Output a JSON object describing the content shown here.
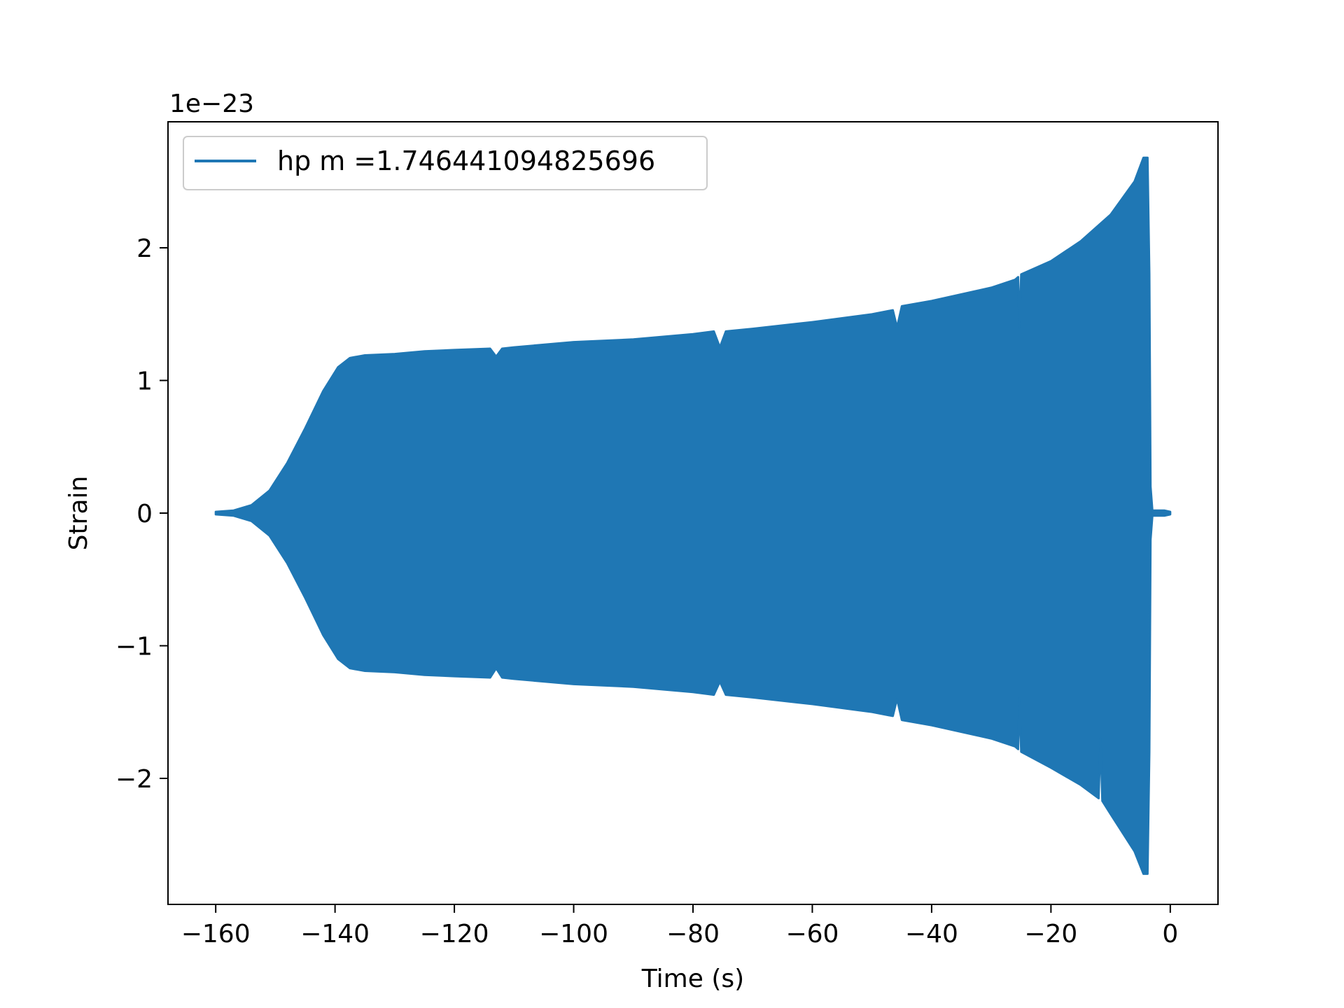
{
  "chart_data": {
    "type": "line",
    "title": "",
    "xlabel": "Time (s)",
    "ylabel": "Strain",
    "y_offset_label": "1e−23",
    "xlim": [
      -168,
      8
    ],
    "ylim": [
      -2.95,
      2.95
    ],
    "x_ticks": [
      {
        "value": -160,
        "label": "−160"
      },
      {
        "value": -140,
        "label": "−140"
      },
      {
        "value": -120,
        "label": "−120"
      },
      {
        "value": -100,
        "label": "−100"
      },
      {
        "value": -80,
        "label": "−80"
      },
      {
        "value": -60,
        "label": "−60"
      },
      {
        "value": -40,
        "label": "−40"
      },
      {
        "value": -20,
        "label": "−20"
      },
      {
        "value": 0,
        "label": "0"
      }
    ],
    "y_ticks": [
      {
        "value": -2,
        "label": "−2"
      },
      {
        "value": -1,
        "label": "−1"
      },
      {
        "value": 0,
        "label": "0"
      },
      {
        "value": 1,
        "label": "1"
      },
      {
        "value": 2,
        "label": "2"
      }
    ],
    "grid": false,
    "legend": {
      "placement": "top-left",
      "entries": [
        "hp m =1.746441094825696"
      ]
    },
    "series": [
      {
        "name": "hp m =1.746441094825696",
        "color": "#1f77b4",
        "upper_envelope": [
          [
            -160,
            0.01
          ],
          [
            -157,
            0.02
          ],
          [
            -154,
            0.06
          ],
          [
            -151,
            0.17
          ],
          [
            -148,
            0.38
          ],
          [
            -145,
            0.64
          ],
          [
            -142,
            0.92
          ],
          [
            -139.5,
            1.1
          ],
          [
            -137.5,
            1.17
          ],
          [
            -135,
            1.19
          ],
          [
            -130,
            1.2
          ],
          [
            -125,
            1.22
          ],
          [
            -120,
            1.23
          ],
          [
            -114,
            1.24
          ],
          [
            -113,
            1.18
          ],
          [
            -112,
            1.24
          ],
          [
            -110,
            1.25
          ],
          [
            -100,
            1.29
          ],
          [
            -90,
            1.31
          ],
          [
            -80,
            1.35
          ],
          [
            -76.5,
            1.37
          ],
          [
            -75.5,
            1.25
          ],
          [
            -74.5,
            1.37
          ],
          [
            -70,
            1.39
          ],
          [
            -60,
            1.44
          ],
          [
            -50,
            1.5
          ],
          [
            -46.5,
            1.53
          ],
          [
            -45.8,
            1.4
          ],
          [
            -45,
            1.56
          ],
          [
            -40,
            1.6
          ],
          [
            -30,
            1.7
          ],
          [
            -26,
            1.76
          ],
          [
            -25.5,
            1.78
          ],
          [
            -25.3,
            1.4
          ],
          [
            -25,
            1.8
          ],
          [
            -20,
            1.9
          ],
          [
            -15,
            2.05
          ],
          [
            -10,
            2.25
          ],
          [
            -6,
            2.5
          ],
          [
            -4.5,
            2.68
          ],
          [
            -3.8,
            2.68
          ],
          [
            -3.5,
            1.8
          ],
          [
            -3.3,
            0.2
          ],
          [
            -3,
            0.02
          ],
          [
            -1,
            0.02
          ],
          [
            0,
            0.01
          ]
        ],
        "lower_envelope": [
          [
            -160,
            -0.01
          ],
          [
            -157,
            -0.02
          ],
          [
            -154,
            -0.06
          ],
          [
            -151,
            -0.17
          ],
          [
            -148,
            -0.38
          ],
          [
            -145,
            -0.64
          ],
          [
            -142,
            -0.92
          ],
          [
            -139.5,
            -1.1
          ],
          [
            -137.5,
            -1.17
          ],
          [
            -135,
            -1.19
          ],
          [
            -130,
            -1.2
          ],
          [
            -125,
            -1.22
          ],
          [
            -120,
            -1.23
          ],
          [
            -114,
            -1.24
          ],
          [
            -113,
            -1.17
          ],
          [
            -112,
            -1.24
          ],
          [
            -110,
            -1.25
          ],
          [
            -100,
            -1.29
          ],
          [
            -90,
            -1.31
          ],
          [
            -80,
            -1.35
          ],
          [
            -76.5,
            -1.37
          ],
          [
            -75.5,
            -1.27
          ],
          [
            -74.5,
            -1.37
          ],
          [
            -70,
            -1.39
          ],
          [
            -60,
            -1.44
          ],
          [
            -50,
            -1.5
          ],
          [
            -46.5,
            -1.53
          ],
          [
            -45.8,
            -1.4
          ],
          [
            -45,
            -1.56
          ],
          [
            -40,
            -1.6
          ],
          [
            -30,
            -1.7
          ],
          [
            -26,
            -1.76
          ],
          [
            -25.5,
            -1.78
          ],
          [
            -25.3,
            -1.4
          ],
          [
            -25,
            -1.8
          ],
          [
            -20,
            -1.92
          ],
          [
            -15,
            -2.05
          ],
          [
            -12,
            -2.15
          ],
          [
            -11.7,
            -1.7
          ],
          [
            -11.4,
            -2.17
          ],
          [
            -10,
            -2.27
          ],
          [
            -6,
            -2.55
          ],
          [
            -4.5,
            -2.72
          ],
          [
            -3.8,
            -2.72
          ],
          [
            -3.5,
            -1.8
          ],
          [
            -3.3,
            -0.2
          ],
          [
            -3,
            -0.02
          ],
          [
            -1,
            -0.02
          ],
          [
            0,
            -0.01
          ]
        ]
      }
    ]
  }
}
